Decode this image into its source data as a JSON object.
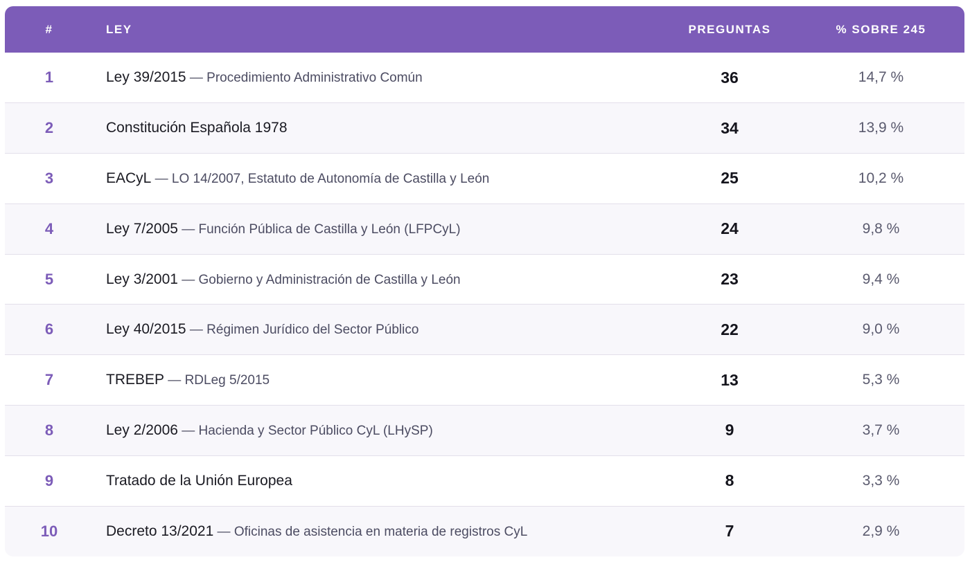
{
  "chart_data": {
    "type": "table",
    "columns": [
      "#",
      "LEY",
      "PREGUNTAS",
      "% SOBRE 245"
    ],
    "rows": [
      {
        "rank": "1",
        "law": "Ley 39/2015",
        "desc": " — Procedimiento Administrativo Común",
        "count": 36,
        "pct": "14,7 %"
      },
      {
        "rank": "2",
        "law": "Constitución Española 1978",
        "desc": "",
        "count": 34,
        "pct": "13,9 %"
      },
      {
        "rank": "3",
        "law": "EACyL",
        "desc": " — LO 14/2007, Estatuto de Autonomía de Castilla y León",
        "count": 25,
        "pct": "10,2 %"
      },
      {
        "rank": "4",
        "law": "Ley 7/2005",
        "desc": " — Función Pública de Castilla y León (LFPCyL)",
        "count": 24,
        "pct": "9,8 %"
      },
      {
        "rank": "5",
        "law": "Ley 3/2001",
        "desc": " — Gobierno y Administración de Castilla y León",
        "count": 23,
        "pct": "9,4 %"
      },
      {
        "rank": "6",
        "law": "Ley 40/2015",
        "desc": " — Régimen Jurídico del Sector Público",
        "count": 22,
        "pct": "9,0 %"
      },
      {
        "rank": "7",
        "law": "TREBEP",
        "desc": " — RDLeg 5/2015",
        "count": 13,
        "pct": "5,3 %"
      },
      {
        "rank": "8",
        "law": "Ley 2/2006",
        "desc": " — Hacienda y Sector Público CyL (LHySP)",
        "count": 9,
        "pct": "3,7 %"
      },
      {
        "rank": "9",
        "law": "Tratado de la Unión Europea",
        "desc": "",
        "count": 8,
        "pct": "3,3 %"
      },
      {
        "rank": "10",
        "law": "Decreto 13/2021",
        "desc": " — Oficinas de asistencia en materia de registros CyL",
        "count": 7,
        "pct": "2,9 %"
      }
    ]
  },
  "colors": {
    "header_bg": "#7c5cb8",
    "rank_text": "#7c5cb8",
    "row_alt_bg": "#f8f7fb"
  }
}
